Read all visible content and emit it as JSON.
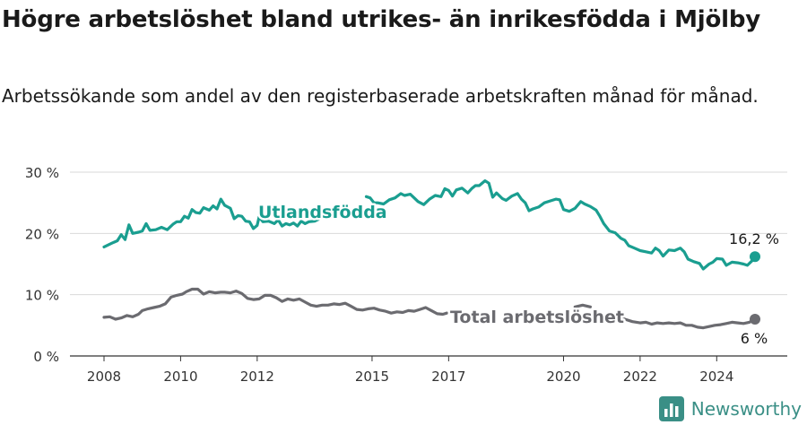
{
  "title": "Högre arbetslöshet bland utrikes- än inrikesfödda i Mjölby",
  "subtitle": "Arbetssökande som andel av den registerbaserade arbetskraften månad för månad.",
  "brand": {
    "name": "Newsworthy",
    "icon": "newsworthy-logo-icon"
  },
  "colors": {
    "foreign": "#1a9e90",
    "total": "#6b6b70",
    "grid": "#d9d9d9",
    "axis": "#333333"
  },
  "chart_data": {
    "type": "line",
    "xlim": [
      2008,
      2025
    ],
    "ylim": [
      0,
      30
    ],
    "y_ticks": [
      0,
      10,
      20,
      30
    ],
    "y_tick_labels": [
      "0 %",
      "10 %",
      "20 %",
      "30 %"
    ],
    "x_ticks": [
      2008,
      2010,
      2012,
      2015,
      2017,
      2020,
      2022,
      2024
    ],
    "x_tick_labels": [
      "2008",
      "2010",
      "2012",
      "2015",
      "2017",
      "2020",
      "2022",
      "2024"
    ],
    "grid": true,
    "series": [
      {
        "name": "Utlandsfödda",
        "end_label": "16,2 %",
        "points": [
          [
            2008.0,
            17.8
          ],
          [
            2008.2,
            18.4
          ],
          [
            2008.35,
            18.8
          ],
          [
            2008.45,
            19.8
          ],
          [
            2008.55,
            19.0
          ],
          [
            2008.65,
            21.4
          ],
          [
            2008.75,
            20.0
          ],
          [
            2008.9,
            20.2
          ],
          [
            2009.0,
            20.4
          ],
          [
            2009.1,
            21.6
          ],
          [
            2009.2,
            20.5
          ],
          [
            2009.35,
            20.6
          ],
          [
            2009.5,
            21.0
          ],
          [
            2009.65,
            20.6
          ],
          [
            2009.8,
            21.5
          ],
          [
            2009.9,
            21.9
          ],
          [
            2010.0,
            21.9
          ],
          [
            2010.1,
            22.8
          ],
          [
            2010.2,
            22.5
          ],
          [
            2010.3,
            23.9
          ],
          [
            2010.4,
            23.4
          ],
          [
            2010.5,
            23.3
          ],
          [
            2010.6,
            24.2
          ],
          [
            2010.75,
            23.8
          ],
          [
            2010.85,
            24.5
          ],
          [
            2010.95,
            24.0
          ],
          [
            2011.05,
            25.6
          ],
          [
            2011.15,
            24.6
          ],
          [
            2011.3,
            24.1
          ],
          [
            2011.4,
            22.4
          ],
          [
            2011.5,
            22.9
          ],
          [
            2011.6,
            22.8
          ],
          [
            2011.7,
            22.0
          ],
          [
            2011.8,
            21.9
          ],
          [
            2011.9,
            20.8
          ],
          [
            2012.0,
            21.3
          ],
          [
            2012.05,
            22.7
          ],
          [
            2012.15,
            21.9
          ],
          [
            2012.3,
            22.0
          ],
          [
            2012.45,
            21.6
          ],
          [
            2012.55,
            22.2
          ],
          [
            2012.65,
            21.2
          ],
          [
            2012.75,
            21.6
          ],
          [
            2012.85,
            21.4
          ],
          [
            2012.95,
            21.7
          ],
          [
            2013.05,
            21.2
          ],
          [
            2013.15,
            22.0
          ],
          [
            2013.25,
            21.6
          ],
          [
            2013.35,
            21.9
          ],
          [
            2013.5,
            22.0
          ],
          [
            2013.6,
            22.3
          ],
          [
            2014.85,
            26.0
          ],
          [
            2014.95,
            25.8
          ],
          [
            2015.05,
            25.0
          ],
          [
            2015.15,
            25.0
          ],
          [
            2015.3,
            24.8
          ],
          [
            2015.45,
            25.5
          ],
          [
            2015.6,
            25.8
          ],
          [
            2015.75,
            26.5
          ],
          [
            2015.85,
            26.2
          ],
          [
            2016.0,
            26.4
          ],
          [
            2016.1,
            25.8
          ],
          [
            2016.2,
            25.2
          ],
          [
            2016.35,
            24.7
          ],
          [
            2016.5,
            25.6
          ],
          [
            2016.65,
            26.2
          ],
          [
            2016.8,
            26.0
          ],
          [
            2016.9,
            27.3
          ],
          [
            2017.0,
            27.0
          ],
          [
            2017.1,
            26.1
          ],
          [
            2017.2,
            27.1
          ],
          [
            2017.35,
            27.4
          ],
          [
            2017.5,
            26.6
          ],
          [
            2017.6,
            27.3
          ],
          [
            2017.7,
            27.8
          ],
          [
            2017.8,
            27.8
          ],
          [
            2017.95,
            28.6
          ],
          [
            2018.05,
            28.2
          ],
          [
            2018.15,
            25.9
          ],
          [
            2018.25,
            26.6
          ],
          [
            2018.4,
            25.7
          ],
          [
            2018.5,
            25.4
          ],
          [
            2018.65,
            26.1
          ],
          [
            2018.8,
            26.5
          ],
          [
            2018.9,
            25.6
          ],
          [
            2019.0,
            25.0
          ],
          [
            2019.1,
            23.7
          ],
          [
            2019.2,
            24.0
          ],
          [
            2019.35,
            24.3
          ],
          [
            2019.5,
            25.0
          ],
          [
            2019.65,
            25.3
          ],
          [
            2019.8,
            25.6
          ],
          [
            2019.9,
            25.5
          ],
          [
            2020.0,
            23.9
          ],
          [
            2020.15,
            23.6
          ],
          [
            2020.3,
            24.1
          ],
          [
            2020.45,
            25.2
          ],
          [
            2020.55,
            24.8
          ],
          [
            2020.7,
            24.4
          ],
          [
            2020.85,
            23.8
          ],
          [
            2020.95,
            22.8
          ],
          [
            2021.05,
            21.6
          ],
          [
            2021.2,
            20.4
          ],
          [
            2021.35,
            20.1
          ],
          [
            2021.5,
            19.2
          ],
          [
            2021.6,
            18.9
          ],
          [
            2021.7,
            18.0
          ],
          [
            2021.85,
            17.6
          ],
          [
            2022.0,
            17.2
          ],
          [
            2022.15,
            17.0
          ],
          [
            2022.3,
            16.8
          ],
          [
            2022.4,
            17.6
          ],
          [
            2022.5,
            17.2
          ],
          [
            2022.6,
            16.3
          ],
          [
            2022.75,
            17.3
          ],
          [
            2022.9,
            17.2
          ],
          [
            2023.05,
            17.6
          ],
          [
            2023.15,
            17.0
          ],
          [
            2023.25,
            15.8
          ],
          [
            2023.4,
            15.4
          ],
          [
            2023.55,
            15.1
          ],
          [
            2023.65,
            14.2
          ],
          [
            2023.8,
            15.0
          ],
          [
            2023.9,
            15.3
          ],
          [
            2024.0,
            15.9
          ],
          [
            2024.15,
            15.8
          ],
          [
            2024.25,
            14.8
          ],
          [
            2024.4,
            15.3
          ],
          [
            2024.55,
            15.2
          ],
          [
            2024.7,
            15.0
          ],
          [
            2024.8,
            14.8
          ],
          [
            2024.95,
            15.7
          ],
          [
            2025.0,
            16.2
          ]
        ]
      },
      {
        "name": "Total arbetslöshet",
        "end_label": "6 %",
        "points": [
          [
            2008.0,
            6.3
          ],
          [
            2008.15,
            6.4
          ],
          [
            2008.3,
            6.0
          ],
          [
            2008.45,
            6.2
          ],
          [
            2008.6,
            6.6
          ],
          [
            2008.75,
            6.4
          ],
          [
            2008.9,
            6.8
          ],
          [
            2009.0,
            7.4
          ],
          [
            2009.15,
            7.7
          ],
          [
            2009.3,
            7.9
          ],
          [
            2009.45,
            8.1
          ],
          [
            2009.6,
            8.5
          ],
          [
            2009.75,
            9.6
          ],
          [
            2009.9,
            9.9
          ],
          [
            2010.05,
            10.1
          ],
          [
            2010.15,
            10.5
          ],
          [
            2010.3,
            10.9
          ],
          [
            2010.45,
            10.9
          ],
          [
            2010.6,
            10.1
          ],
          [
            2010.75,
            10.5
          ],
          [
            2010.9,
            10.3
          ],
          [
            2011.05,
            10.4
          ],
          [
            2011.15,
            10.4
          ],
          [
            2011.3,
            10.3
          ],
          [
            2011.45,
            10.6
          ],
          [
            2011.6,
            10.2
          ],
          [
            2011.75,
            9.4
          ],
          [
            2011.9,
            9.2
          ],
          [
            2012.05,
            9.3
          ],
          [
            2012.2,
            9.9
          ],
          [
            2012.35,
            9.9
          ],
          [
            2012.5,
            9.5
          ],
          [
            2012.65,
            8.9
          ],
          [
            2012.8,
            9.3
          ],
          [
            2012.95,
            9.1
          ],
          [
            2013.1,
            9.3
          ],
          [
            2013.25,
            8.8
          ],
          [
            2013.4,
            8.3
          ],
          [
            2013.55,
            8.1
          ],
          [
            2013.7,
            8.3
          ],
          [
            2013.85,
            8.3
          ],
          [
            2014.0,
            8.5
          ],
          [
            2014.15,
            8.4
          ],
          [
            2014.3,
            8.6
          ],
          [
            2014.45,
            8.1
          ],
          [
            2014.6,
            7.6
          ],
          [
            2014.75,
            7.5
          ],
          [
            2014.9,
            7.7
          ],
          [
            2015.05,
            7.8
          ],
          [
            2015.2,
            7.5
          ],
          [
            2015.35,
            7.3
          ],
          [
            2015.5,
            7.0
          ],
          [
            2015.65,
            7.2
          ],
          [
            2015.8,
            7.1
          ],
          [
            2015.95,
            7.4
          ],
          [
            2016.1,
            7.3
          ],
          [
            2016.25,
            7.6
          ],
          [
            2016.4,
            7.9
          ],
          [
            2016.55,
            7.4
          ],
          [
            2016.7,
            6.9
          ],
          [
            2016.85,
            6.8
          ],
          [
            2016.95,
            7.0
          ],
          [
            2020.3,
            8.0
          ],
          [
            2020.5,
            8.3
          ],
          [
            2020.7,
            8.0
          ],
          [
            2021.4,
            6.6
          ],
          [
            2021.6,
            6.0
          ],
          [
            2021.8,
            5.6
          ],
          [
            2022.0,
            5.4
          ],
          [
            2022.15,
            5.5
          ],
          [
            2022.3,
            5.2
          ],
          [
            2022.45,
            5.4
          ],
          [
            2022.6,
            5.3
          ],
          [
            2022.75,
            5.4
          ],
          [
            2022.9,
            5.3
          ],
          [
            2023.05,
            5.4
          ],
          [
            2023.2,
            5.0
          ],
          [
            2023.35,
            5.0
          ],
          [
            2023.5,
            4.7
          ],
          [
            2023.65,
            4.6
          ],
          [
            2023.8,
            4.8
          ],
          [
            2023.95,
            5.0
          ],
          [
            2024.1,
            5.1
          ],
          [
            2024.25,
            5.3
          ],
          [
            2024.4,
            5.5
          ],
          [
            2024.55,
            5.4
          ],
          [
            2024.7,
            5.3
          ],
          [
            2024.85,
            5.5
          ],
          [
            2025.0,
            6.0
          ]
        ]
      }
    ]
  }
}
